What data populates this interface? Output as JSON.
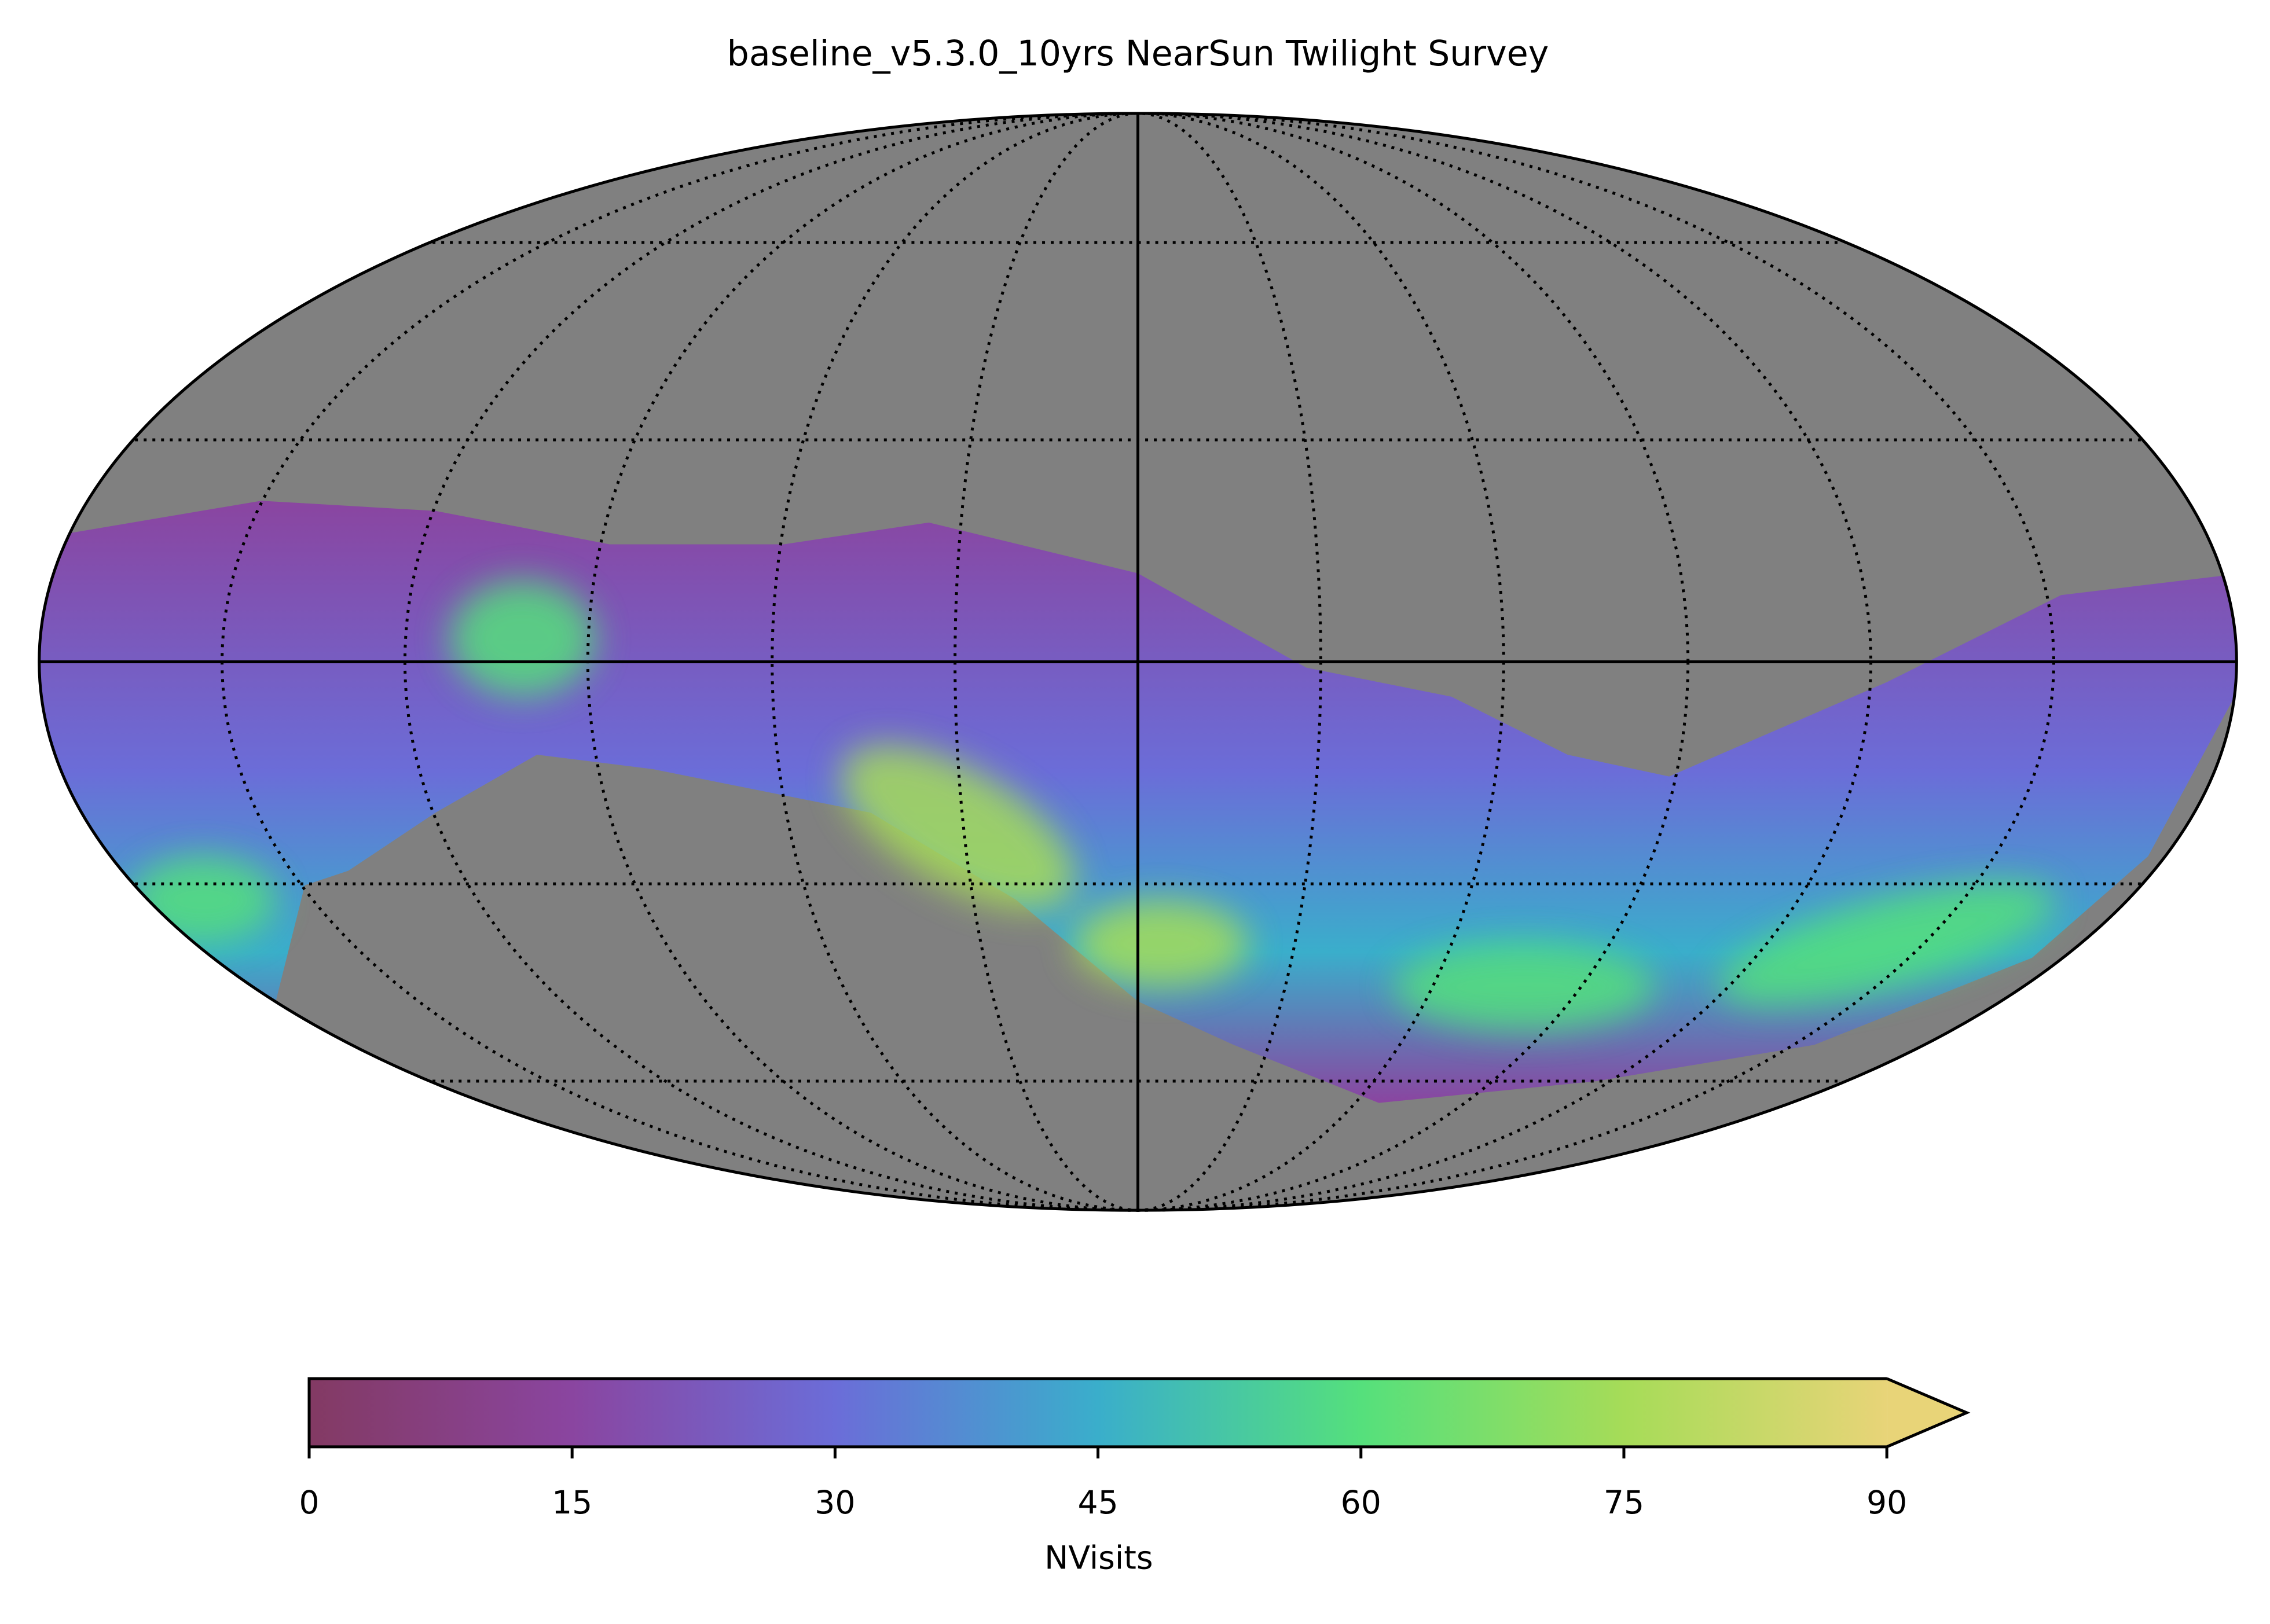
{
  "chart_data": {
    "type": "mollweide",
    "title": "baseline_v5.3.0_10yrs NearSun Twilight Survey",
    "colorbar": {
      "label": "NVisits",
      "lim": [
        0,
        90
      ],
      "ticks": [
        0,
        15,
        30,
        45,
        60,
        75,
        90
      ],
      "colors": [
        "#833a63",
        "#8a45a0",
        "#6b6dd8",
        "#3aaecb",
        "#55e07c",
        "#a6dc58",
        "#e8d478"
      ],
      "extend": "max"
    },
    "background_color": "#808080"
  }
}
